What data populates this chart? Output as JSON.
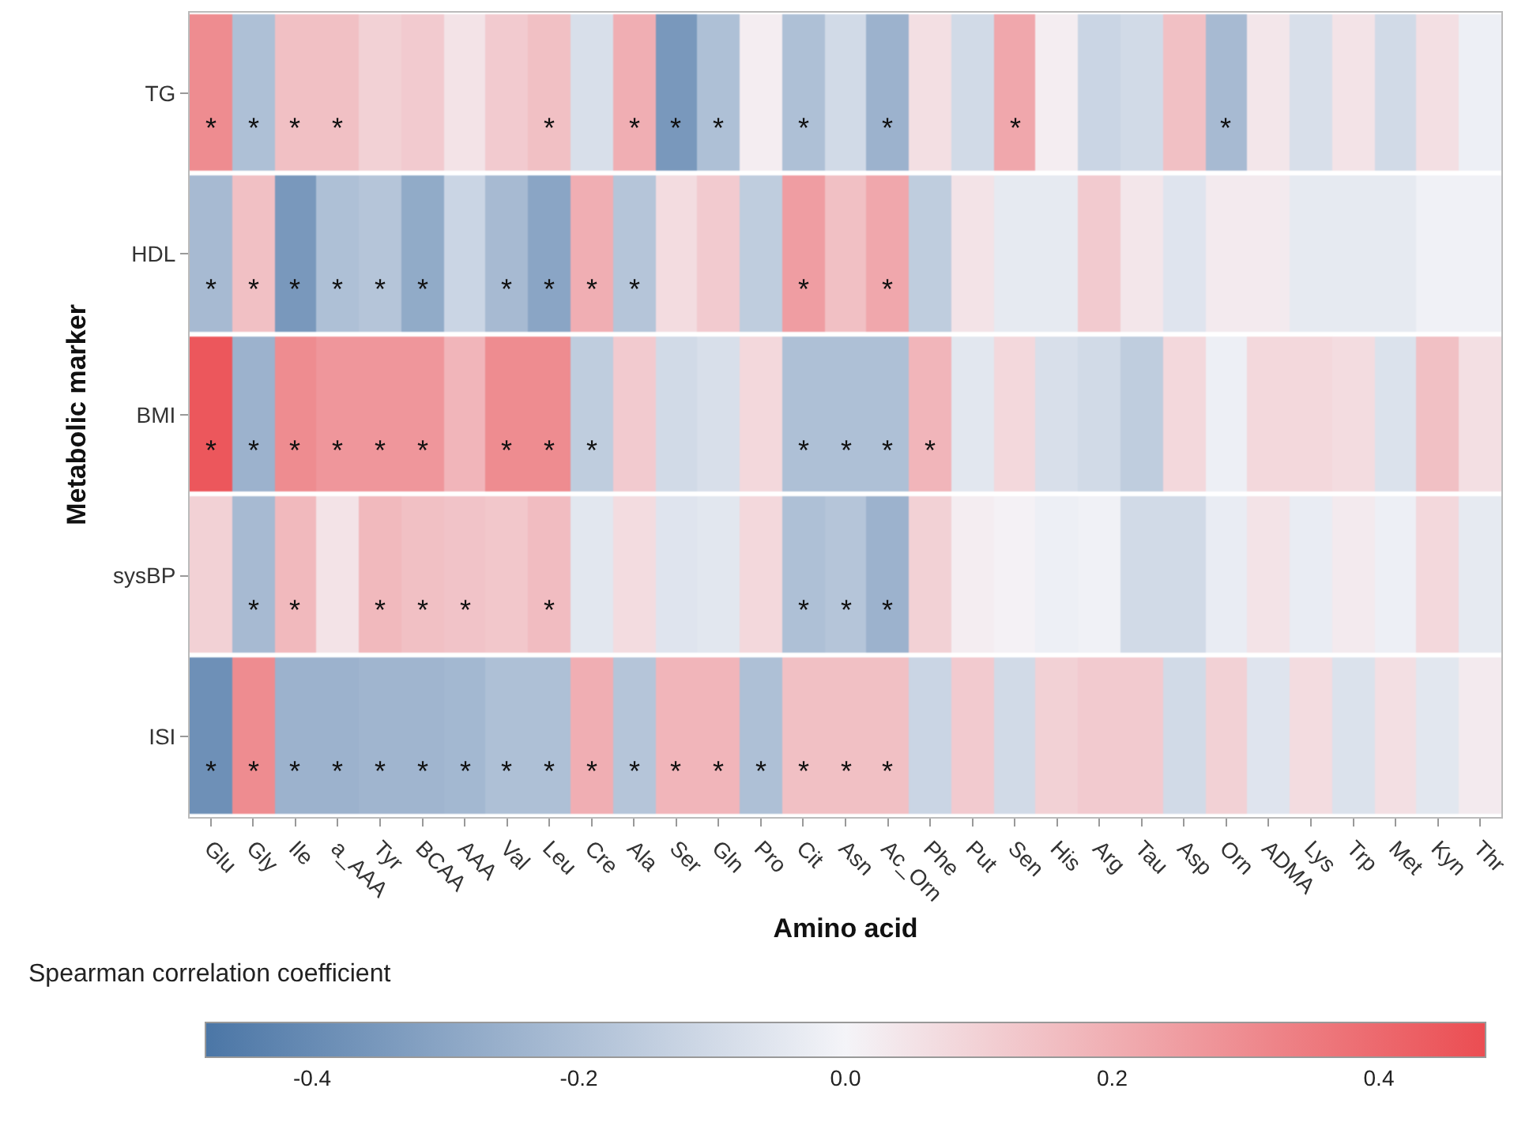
{
  "chart_data": {
    "type": "heatmap",
    "xlabel": "Amino acid",
    "ylabel": "Metabolic marker",
    "clabel": "Spearman correlation coefficient",
    "categories": [
      "Glu",
      "Gly",
      "Ile",
      "a_AAA",
      "Tyr",
      "BCAA",
      "AAA",
      "Val",
      "Leu",
      "Cre",
      "Ala",
      "Ser",
      "Gln",
      "Pro",
      "Cit",
      "Asn",
      "Ac_Orn",
      "Phe",
      "Put",
      "Sen",
      "His",
      "Arg",
      "Tau",
      "Asp",
      "Orn",
      "ADMA",
      "Lys",
      "Trp",
      "Met",
      "Kyn",
      "Thr"
    ],
    "y_categories": [
      "TG",
      "HDL",
      "BMI",
      "sysBP",
      "ISI"
    ],
    "cells": [
      [
        0.3,
        -0.2,
        0.15,
        0.15,
        0.1,
        0.12,
        0.05,
        0.12,
        0.15,
        -0.08,
        0.2,
        -0.35,
        -0.2,
        0.02,
        -0.2,
        -0.1,
        -0.25,
        0.06,
        -0.1,
        0.22,
        0.02,
        -0.12,
        -0.1,
        0.15,
        -0.22,
        0.04,
        -0.08,
        0.05,
        -0.1,
        0.06,
        -0.02
      ],
      [
        -0.22,
        0.15,
        -0.35,
        -0.2,
        -0.18,
        -0.28,
        -0.12,
        -0.22,
        -0.3,
        0.2,
        -0.18,
        0.07,
        0.12,
        -0.15,
        0.25,
        0.15,
        0.22,
        -0.15,
        0.05,
        -0.04,
        -0.04,
        0.12,
        0.04,
        -0.06,
        0.03,
        0.03,
        -0.04,
        -0.04,
        -0.04,
        -0.01,
        -0.01
      ],
      [
        0.45,
        -0.25,
        0.3,
        0.27,
        0.27,
        0.27,
        0.18,
        0.3,
        0.3,
        -0.15,
        0.12,
        -0.1,
        -0.08,
        0.08,
        -0.2,
        -0.2,
        -0.2,
        0.18,
        -0.05,
        0.08,
        -0.08,
        -0.1,
        -0.15,
        0.08,
        -0.02,
        0.08,
        0.08,
        0.07,
        -0.07,
        0.15,
        0.06
      ],
      [
        0.1,
        -0.22,
        0.17,
        0.05,
        0.17,
        0.15,
        0.14,
        0.13,
        0.16,
        -0.05,
        0.07,
        -0.06,
        -0.05,
        0.08,
        -0.2,
        -0.18,
        -0.25,
        0.1,
        0.02,
        0.01,
        -0.02,
        -0.01,
        -0.1,
        -0.1,
        -0.03,
        0.05,
        -0.03,
        0.03,
        -0.02,
        0.08,
        -0.04
      ],
      [
        -0.38,
        0.3,
        -0.25,
        -0.25,
        -0.24,
        -0.24,
        -0.23,
        -0.2,
        -0.2,
        0.2,
        -0.18,
        0.18,
        0.18,
        -0.2,
        0.15,
        0.15,
        0.15,
        -0.12,
        0.12,
        -0.1,
        0.1,
        0.12,
        0.12,
        -0.1,
        0.1,
        -0.06,
        0.07,
        -0.07,
        0.06,
        -0.05,
        0.03
      ]
    ],
    "cell_labels": [
      [
        "*",
        "*",
        "*",
        "*",
        null,
        null,
        null,
        null,
        "*",
        null,
        "*",
        "*",
        "*",
        null,
        "*",
        null,
        "*",
        null,
        null,
        "*",
        null,
        null,
        null,
        null,
        "*",
        null,
        null,
        null,
        null,
        null,
        null
      ],
      [
        "*",
        "*",
        "*",
        "*",
        "*",
        "*",
        null,
        "*",
        "*",
        "*",
        "*",
        null,
        null,
        null,
        "*",
        null,
        "*",
        null,
        null,
        null,
        null,
        null,
        null,
        null,
        null,
        null,
        null,
        null,
        null,
        null,
        null
      ],
      [
        "*",
        "*",
        "*",
        "*",
        "*",
        "*",
        null,
        "*",
        "*",
        "*",
        null,
        null,
        null,
        null,
        "*",
        "*",
        "*",
        "*",
        null,
        null,
        null,
        null,
        null,
        null,
        null,
        null,
        null,
        null,
        null,
        null,
        null
      ],
      [
        null,
        "*",
        "*",
        null,
        "*",
        "*",
        "*",
        null,
        "*",
        null,
        null,
        null,
        null,
        null,
        "*",
        "*",
        "*",
        null,
        null,
        null,
        null,
        null,
        null,
        null,
        null,
        null,
        null,
        null,
        null,
        null,
        null
      ],
      [
        "*",
        "*",
        "*",
        "*",
        "*",
        "*",
        "*",
        "*",
        "*",
        "*",
        "*",
        "*",
        "*",
        "*",
        "*",
        "*",
        "*",
        null,
        null,
        null,
        null,
        null,
        null,
        null,
        null,
        null,
        null,
        null,
        null,
        null,
        null
      ]
    ],
    "colors": [
      "#4b76a6",
      "#f4f4f8",
      "#eb4d52"
    ],
    "clim": [
      -0.48,
      0.48
    ],
    "cticks": [
      {
        "value": -0.4,
        "label": "-0.4"
      },
      {
        "value": -0.2,
        "label": "-0.2"
      },
      {
        "value": 0,
        "label": "0.0"
      },
      {
        "value": 0.2,
        "label": "0.2"
      },
      {
        "value": 0.4,
        "label": "0.4"
      }
    ]
  }
}
